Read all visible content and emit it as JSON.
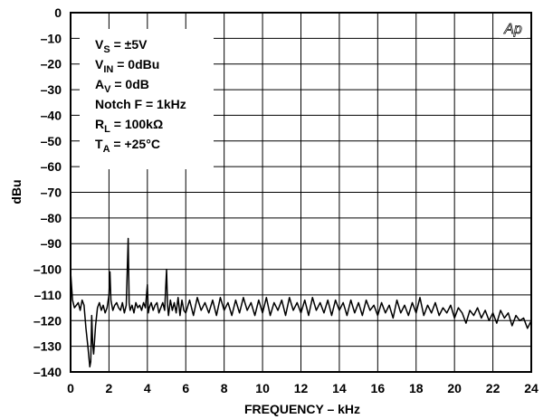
{
  "chart_data": {
    "type": "line",
    "xlabel": "FREQUENCY – kHz",
    "ylabel": "dBu",
    "xlim": [
      0,
      24
    ],
    "ylim": [
      -140,
      0
    ],
    "x_ticks": [
      "0",
      "2",
      "4",
      "6",
      "8",
      "10",
      "12",
      "14",
      "16",
      "18",
      "20",
      "22",
      "24"
    ],
    "y_ticks": [
      "0",
      "–10",
      "–20",
      "–30",
      "–40",
      "–50",
      "–60",
      "–70",
      "–80",
      "–90",
      "–100",
      "–110",
      "–120",
      "–130",
      "–140"
    ],
    "grid": true,
    "logo": "Ap",
    "conditions": [
      {
        "main": "V",
        "sub": "S",
        "rest": " = ±5V"
      },
      {
        "main": "V",
        "sub": "IN",
        "rest": " = 0dBu"
      },
      {
        "main": "A",
        "sub": "V",
        "rest": " = 0dB"
      },
      {
        "main": "Notch F = 1kHz",
        "sub": "",
        "rest": ""
      },
      {
        "main": "R",
        "sub": "L",
        "rest": " = 100kΩ"
      },
      {
        "main": "T",
        "sub": "A",
        "rest": " = +25°C"
      }
    ],
    "series": [
      {
        "color": "#000000",
        "points": [
          [
            0.0,
            -101
          ],
          [
            0.1,
            -112
          ],
          [
            0.2,
            -115
          ],
          [
            0.3,
            -114
          ],
          [
            0.4,
            -113
          ],
          [
            0.5,
            -116
          ],
          [
            0.6,
            -112
          ],
          [
            0.7,
            -114
          ],
          [
            0.8,
            -123
          ],
          [
            0.9,
            -130
          ],
          [
            1.0,
            -138
          ],
          [
            1.05,
            -136
          ],
          [
            1.1,
            -118
          ],
          [
            1.15,
            -129
          ],
          [
            1.2,
            -133
          ],
          [
            1.3,
            -122
          ],
          [
            1.4,
            -115
          ],
          [
            1.5,
            -113
          ],
          [
            1.6,
            -116
          ],
          [
            1.7,
            -114
          ],
          [
            1.8,
            -117
          ],
          [
            1.9,
            -115
          ],
          [
            2.0,
            -110
          ],
          [
            2.05,
            -101
          ],
          [
            2.1,
            -112
          ],
          [
            2.2,
            -116
          ],
          [
            2.3,
            -114
          ],
          [
            2.4,
            -113
          ],
          [
            2.5,
            -115
          ],
          [
            2.6,
            -116
          ],
          [
            2.7,
            -113
          ],
          [
            2.8,
            -117
          ],
          [
            2.9,
            -114
          ],
          [
            3.0,
            -88
          ],
          [
            3.05,
            -113
          ],
          [
            3.1,
            -116
          ],
          [
            3.2,
            -114
          ],
          [
            3.3,
            -117
          ],
          [
            3.4,
            -113
          ],
          [
            3.5,
            -115
          ],
          [
            3.6,
            -114
          ],
          [
            3.7,
            -116
          ],
          [
            3.8,
            -113
          ],
          [
            3.9,
            -115
          ],
          [
            4.0,
            -106
          ],
          [
            4.05,
            -117
          ],
          [
            4.1,
            -115
          ],
          [
            4.2,
            -113
          ],
          [
            4.3,
            -116
          ],
          [
            4.4,
            -114
          ],
          [
            4.5,
            -113
          ],
          [
            4.6,
            -117
          ],
          [
            4.7,
            -115
          ],
          [
            4.8,
            -113
          ],
          [
            4.9,
            -116
          ],
          [
            5.0,
            -100
          ],
          [
            5.05,
            -114
          ],
          [
            5.1,
            -118
          ],
          [
            5.2,
            -112
          ],
          [
            5.3,
            -116
          ],
          [
            5.4,
            -113
          ],
          [
            5.5,
            -117
          ],
          [
            5.6,
            -111
          ],
          [
            5.7,
            -118
          ],
          [
            5.8,
            -112
          ],
          [
            5.9,
            -116
          ],
          [
            6.0,
            -117
          ],
          [
            6.2,
            -112
          ],
          [
            6.4,
            -118
          ],
          [
            6.6,
            -111
          ],
          [
            6.8,
            -116
          ],
          [
            7.0,
            -113
          ],
          [
            7.2,
            -117
          ],
          [
            7.4,
            -112
          ],
          [
            7.6,
            -118
          ],
          [
            7.8,
            -111
          ],
          [
            8.0,
            -116
          ],
          [
            8.2,
            -113
          ],
          [
            8.4,
            -118
          ],
          [
            8.6,
            -112
          ],
          [
            8.8,
            -117
          ],
          [
            9.0,
            -111
          ],
          [
            9.2,
            -116
          ],
          [
            9.4,
            -113
          ],
          [
            9.6,
            -118
          ],
          [
            9.8,
            -112
          ],
          [
            10.0,
            -117
          ],
          [
            10.2,
            -111
          ],
          [
            10.4,
            -118
          ],
          [
            10.6,
            -113
          ],
          [
            10.8,
            -116
          ],
          [
            11.0,
            -112
          ],
          [
            11.2,
            -118
          ],
          [
            11.4,
            -111
          ],
          [
            11.6,
            -116
          ],
          [
            11.8,
            -113
          ],
          [
            12.0,
            -117
          ],
          [
            12.2,
            -112
          ],
          [
            12.4,
            -118
          ],
          [
            12.6,
            -111
          ],
          [
            12.8,
            -116
          ],
          [
            13.0,
            -113
          ],
          [
            13.2,
            -117
          ],
          [
            13.4,
            -112
          ],
          [
            13.6,
            -118
          ],
          [
            13.8,
            -112
          ],
          [
            14.0,
            -116
          ],
          [
            14.2,
            -113
          ],
          [
            14.4,
            -118
          ],
          [
            14.6,
            -112
          ],
          [
            14.8,
            -117
          ],
          [
            15.0,
            -113
          ],
          [
            15.2,
            -118
          ],
          [
            15.4,
            -112
          ],
          [
            15.6,
            -116
          ],
          [
            15.8,
            -114
          ],
          [
            16.0,
            -118
          ],
          [
            16.2,
            -113
          ],
          [
            16.4,
            -117
          ],
          [
            16.6,
            -114
          ],
          [
            16.8,
            -119
          ],
          [
            17.0,
            -112
          ],
          [
            17.2,
            -117
          ],
          [
            17.4,
            -114
          ],
          [
            17.6,
            -118
          ],
          [
            17.8,
            -113
          ],
          [
            18.0,
            -117
          ],
          [
            18.2,
            -111
          ],
          [
            18.4,
            -118
          ],
          [
            18.6,
            -114
          ],
          [
            18.8,
            -117
          ],
          [
            19.0,
            -113
          ],
          [
            19.2,
            -118
          ],
          [
            19.4,
            -115
          ],
          [
            19.6,
            -117
          ],
          [
            19.8,
            -114
          ],
          [
            20.0,
            -119
          ],
          [
            20.2,
            -115
          ],
          [
            20.4,
            -117
          ],
          [
            20.6,
            -121
          ],
          [
            20.8,
            -116
          ],
          [
            21.0,
            -118
          ],
          [
            21.2,
            -115
          ],
          [
            21.4,
            -119
          ],
          [
            21.6,
            -116
          ],
          [
            21.8,
            -120
          ],
          [
            22.0,
            -117
          ],
          [
            22.2,
            -121
          ],
          [
            22.4,
            -116
          ],
          [
            22.6,
            -119
          ],
          [
            22.8,
            -117
          ],
          [
            23.0,
            -122
          ],
          [
            23.2,
            -118
          ],
          [
            23.4,
            -120
          ],
          [
            23.6,
            -119
          ],
          [
            23.8,
            -123
          ],
          [
            24.0,
            -120
          ]
        ]
      }
    ]
  }
}
